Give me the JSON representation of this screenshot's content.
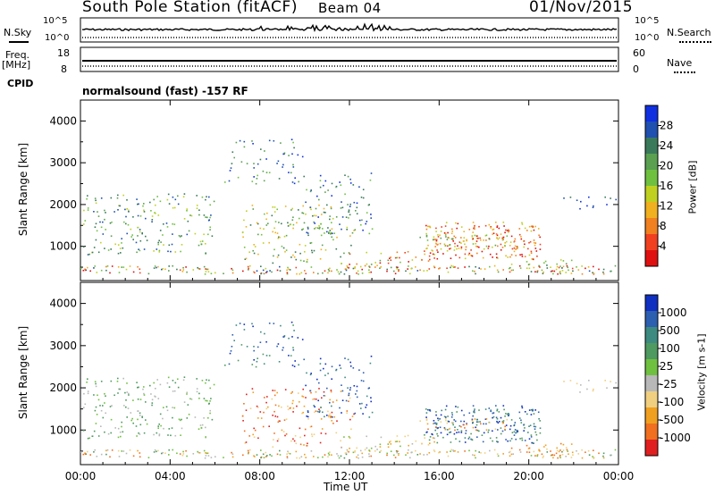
{
  "header": {
    "title": "South Pole Station (fitACF)",
    "beam": "Beam 04",
    "date": "01/Nov/2015"
  },
  "top_panels": {
    "nsky_label": "N.Sky",
    "nsearch_label": "N.Search",
    "noise_ticks": [
      "10^5",
      "10^0"
    ],
    "freq_label": "Freq.",
    "freq_unit": "[MHz]",
    "freq_ticks": [
      "18",
      "8"
    ],
    "nave_label": "Nave",
    "nave_ticks": [
      "60",
      "0"
    ],
    "cpid_label": "CPID",
    "cpid_value": "normalsound (fast) -157 RF"
  },
  "colors": {
    "power_scale": [
      "#1030e0",
      "#2050b0",
      "#3a7a5a",
      "#5aa050",
      "#70c040",
      "#c0d020",
      "#f0b020",
      "#f08020",
      "#f04020",
      "#e01010"
    ],
    "velocity_scale": [
      "#1030c0",
      "#2d5fb0",
      "#3d8a80",
      "#4e9a60",
      "#70c040",
      "#b8b8b8",
      "#f0d080",
      "#f0a020",
      "#f07020",
      "#e02020"
    ]
  },
  "chart_data": [
    {
      "type": "heatmap",
      "panel": "power",
      "ylabel": "Slant Range [km]",
      "xlabel": "Time UT",
      "x_ticks": [
        "00:00",
        "04:00",
        "08:00",
        "12:00",
        "16:00",
        "20:00",
        "00:00"
      ],
      "xlim_hours": [
        0,
        24
      ],
      "y_ticks": [
        1000,
        2000,
        3000,
        4000
      ],
      "ylim": [
        180,
        4500
      ],
      "colorbar_label": "Power [dB]",
      "colorbar_ticks": [
        4,
        8,
        12,
        16,
        20,
        24,
        28
      ],
      "colorbar_range": [
        0,
        30
      ]
    },
    {
      "type": "heatmap",
      "panel": "velocity",
      "ylabel": "Slant Range [km]",
      "xlabel": "Time UT",
      "x_ticks": [
        "00:00",
        "04:00",
        "08:00",
        "12:00",
        "16:00",
        "20:00",
        "00:00"
      ],
      "xlim_hours": [
        0,
        24
      ],
      "y_ticks": [
        1000,
        2000,
        3000,
        4000
      ],
      "ylim": [
        180,
        4500
      ],
      "colorbar_label": "Velocity [m s-1]",
      "colorbar_ticks": [
        "1000",
        "500",
        "100",
        "25",
        "-25",
        "-100",
        "-500",
        "-1000"
      ]
    }
  ]
}
